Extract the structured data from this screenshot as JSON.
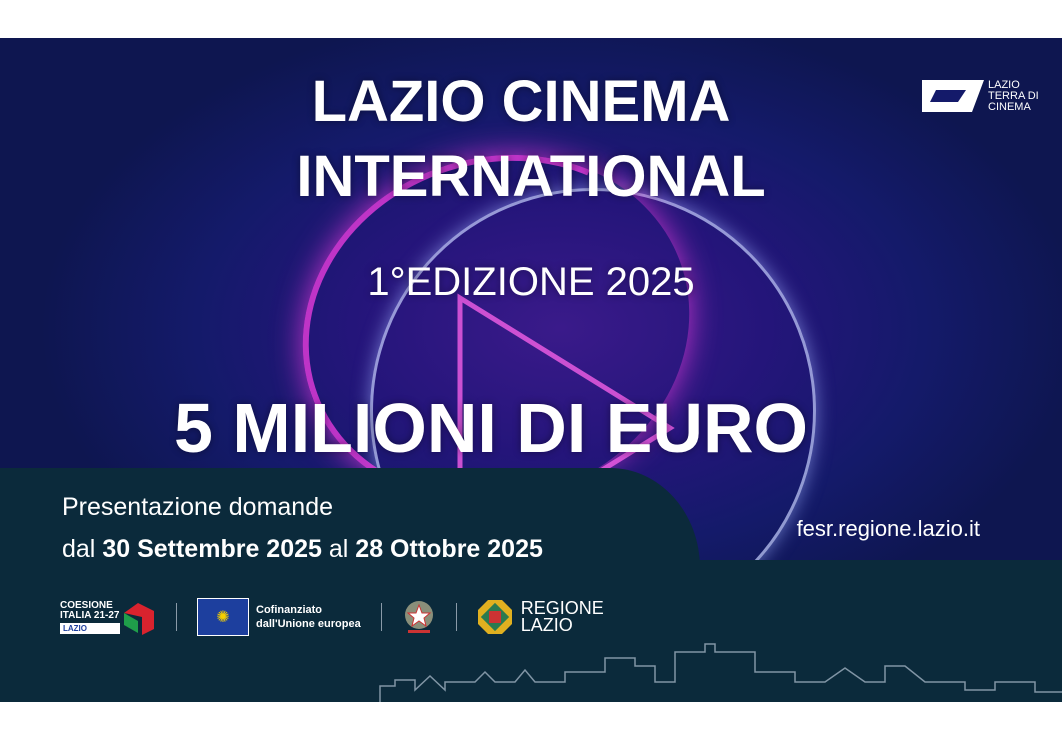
{
  "banner": {
    "title_line1": "LAZIO CINEMA",
    "title_line2": "INTERNATIONAL",
    "edition": "1°EDIZIONE 2025",
    "amount": "5 MILIONI DI EURO",
    "brand_logo": {
      "line1": "LAZIO",
      "line2": "TERRA DI",
      "line3": "CINEMA"
    },
    "presentation_line1": "Presentazione domande",
    "presentation_from_prefix": "dal",
    "presentation_from_date": "30 Settembre 2025",
    "presentation_to_prefix": "al",
    "presentation_to_date": "28 Ottobre 2025",
    "website": "fesr.regione.lazio.it"
  },
  "footer_logos": {
    "coesione": {
      "line1": "COESIONE",
      "line2": "ITALIA 21-27",
      "tag": "LAZIO"
    },
    "eu": {
      "line1": "Cofinanziato",
      "line2": "dall'Unione europea"
    },
    "regione": {
      "line1": "REGIONE",
      "line2": "LAZIO"
    }
  },
  "colors": {
    "dark_panel": "#0b2a3b",
    "background": "#141a6a",
    "neon_pink": "#e63cdc",
    "eu_blue": "#1d3f9e"
  }
}
